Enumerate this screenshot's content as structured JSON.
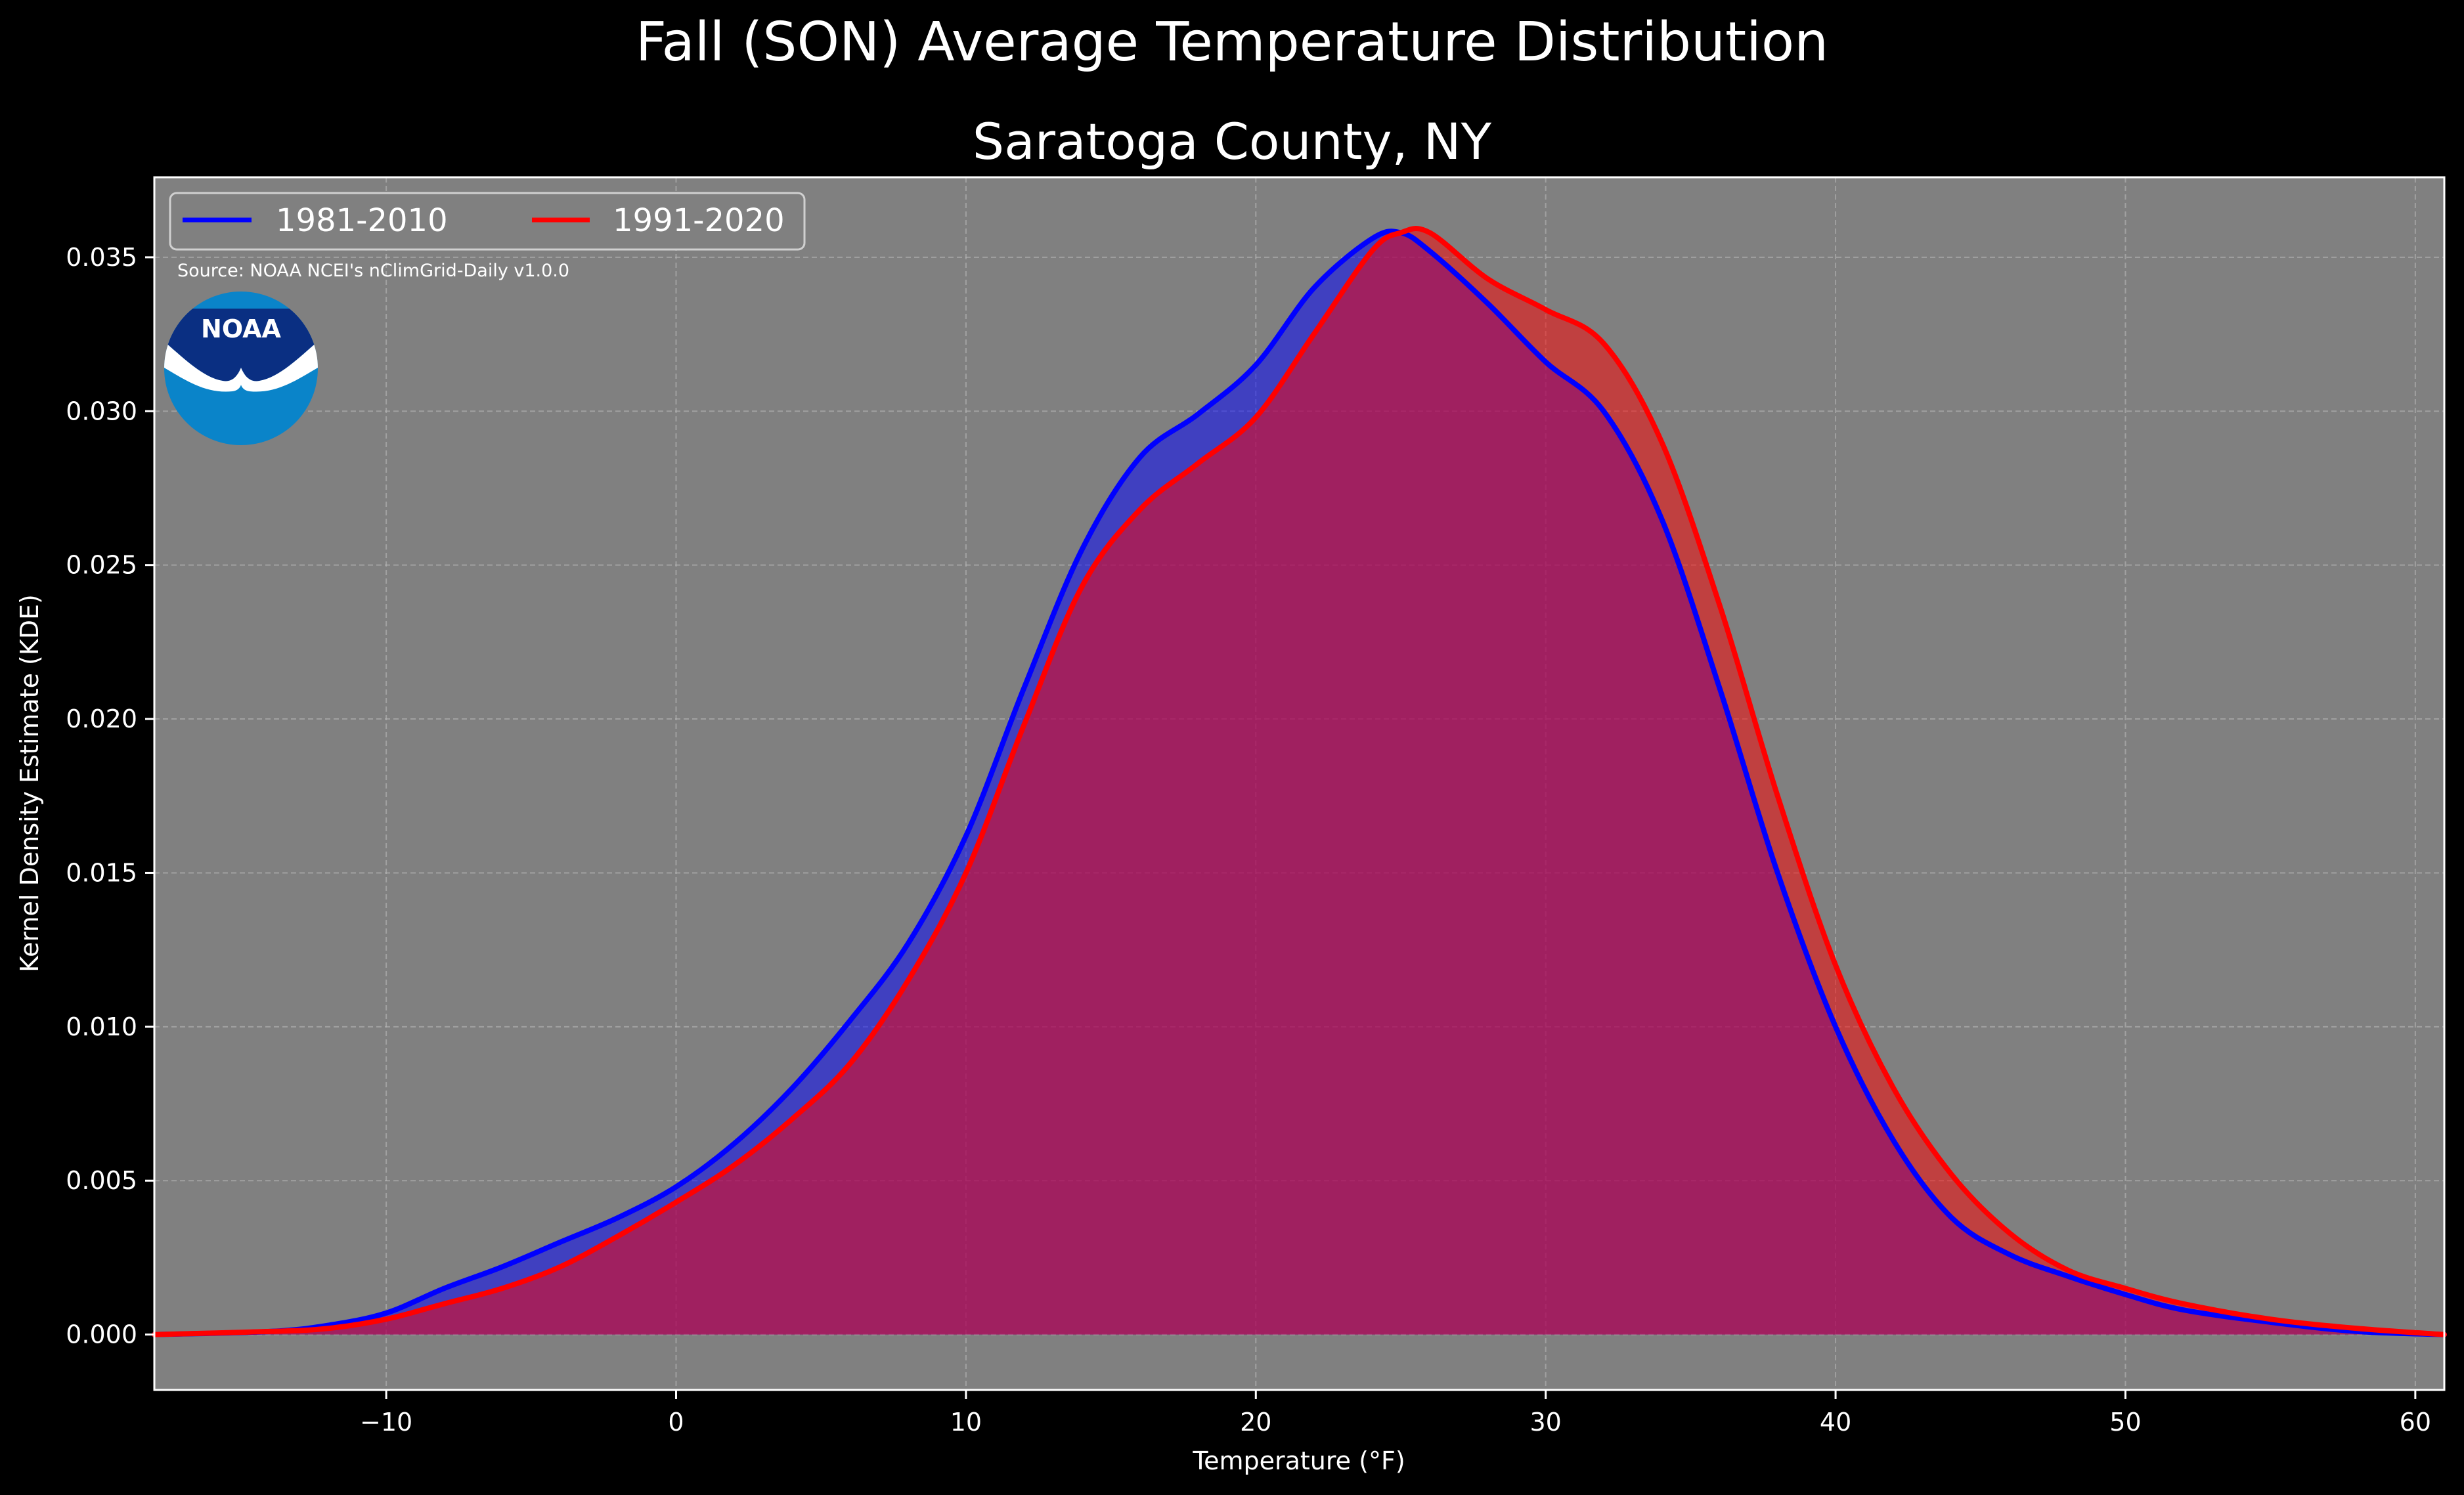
{
  "figure": {
    "title": "Fall (SON) Average Temperature Distribution",
    "subtitle": "Saratoga County, NY",
    "source": "Source: NOAA NCEI's nClimGrid-Daily v1.0.0",
    "logo_text": "NOAA"
  },
  "colors": {
    "background": "#000000",
    "plot_background": "#808080",
    "series_1": "#0000ff",
    "series_2": "#ff0000"
  },
  "chart_data": {
    "type": "area",
    "title": "Saratoga County, NY",
    "xlabel": "Temperature ($^\\circ$F)",
    "ylabel": "Kernel Density Estimate (KDE)",
    "xlim": [
      -18,
      61
    ],
    "ylim": [
      -0.0018,
      0.0376
    ],
    "xticks": [
      -10,
      0,
      10,
      20,
      30,
      40,
      50,
      60
    ],
    "xtick_labels": [
      "−10",
      "0",
      "10",
      "20",
      "30",
      "40",
      "50",
      "60"
    ],
    "yticks": [
      0.0,
      0.005,
      0.01,
      0.015,
      0.02,
      0.025,
      0.03,
      0.035
    ],
    "ytick_labels": [
      "0.000",
      "0.005",
      "0.010",
      "0.015",
      "0.020",
      "0.025",
      "0.030",
      "0.035"
    ],
    "grid": true,
    "legend_position": "top-left",
    "series": [
      {
        "name": "1981-2010",
        "color": "#0000ff",
        "x": [
          -18,
          -14,
          -12,
          -10,
          -8,
          -6,
          -4,
          -2,
          0,
          2,
          4,
          6,
          8,
          10,
          12,
          14,
          16,
          18,
          20,
          22,
          24,
          25,
          26,
          28,
          30,
          32,
          34,
          36,
          38,
          40,
          42,
          44,
          46,
          48,
          50,
          52,
          55,
          58,
          61
        ],
        "values": [
          0.0,
          0.0001,
          0.0003,
          0.0007,
          0.0015,
          0.0022,
          0.003,
          0.0038,
          0.0048,
          0.0062,
          0.008,
          0.0102,
          0.0127,
          0.0162,
          0.021,
          0.0255,
          0.0285,
          0.0299,
          0.0315,
          0.034,
          0.0356,
          0.0358,
          0.0352,
          0.0335,
          0.0316,
          0.03,
          0.0265,
          0.021,
          0.015,
          0.01,
          0.0063,
          0.0038,
          0.0026,
          0.0019,
          0.0013,
          0.0008,
          0.0004,
          0.0001,
          0.0
        ]
      },
      {
        "name": "1991-2020",
        "color": "#ff0000",
        "x": [
          -18,
          -14,
          -12,
          -10,
          -8,
          -6,
          -4,
          -2,
          0,
          2,
          4,
          6,
          8,
          10,
          12,
          14,
          16,
          18,
          20,
          22,
          24,
          25,
          26,
          28,
          30,
          32,
          34,
          36,
          38,
          40,
          42,
          44,
          46,
          48,
          50,
          52,
          55,
          58,
          61
        ],
        "values": [
          0.0,
          0.0001,
          0.0002,
          0.0005,
          0.001,
          0.0015,
          0.0022,
          0.0032,
          0.0043,
          0.0055,
          0.007,
          0.0088,
          0.0115,
          0.015,
          0.0198,
          0.0243,
          0.0268,
          0.0283,
          0.0298,
          0.0325,
          0.0352,
          0.0358,
          0.0358,
          0.0343,
          0.0333,
          0.0322,
          0.029,
          0.0237,
          0.0175,
          0.012,
          0.008,
          0.0052,
          0.0033,
          0.0021,
          0.0015,
          0.001,
          0.0005,
          0.0002,
          0.0
        ]
      }
    ]
  }
}
